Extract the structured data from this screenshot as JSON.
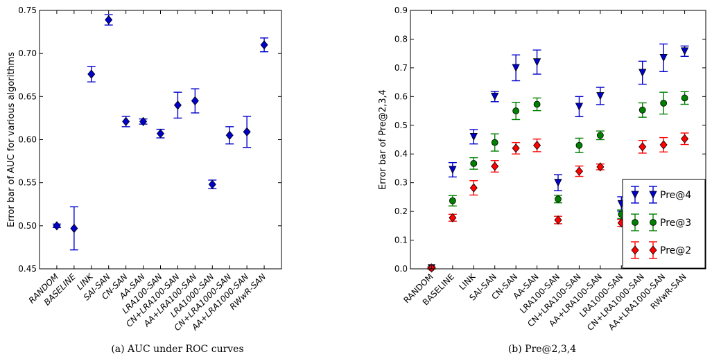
{
  "chart_data": [
    {
      "type": "scatter",
      "error_bars": true,
      "caption": "(a) AUC under ROC curves",
      "ylabel": "Error bar of AUC for various algorithms",
      "xlabel": "",
      "ylim": [
        0.45,
        0.75
      ],
      "yticks": [
        "0.45",
        "0.50",
        "0.55",
        "0.60",
        "0.65",
        "0.70",
        "0.75"
      ],
      "categories": [
        "RANDOM",
        "BASELINE",
        "LINK",
        "SAI-SAN",
        "CN-SAN",
        "AA-SAN",
        "LRA100-SAN",
        "CN+LRA100-SAN",
        "AA+LRA100-SAN",
        "LRA1000-SAN",
        "CN+LRA1000-SAN",
        "AA+LRA1000-SAN",
        "RWwR-SAN"
      ],
      "category_style": "italic",
      "series": [
        {
          "marker": "diamond",
          "color": "#0000cc",
          "values": [
            0.5,
            0.497,
            0.676,
            0.739,
            0.621,
            0.621,
            0.607,
            0.64,
            0.645,
            0.548,
            0.605,
            0.609,
            0.71
          ],
          "errors": [
            0.002,
            0.025,
            0.009,
            0.006,
            0.006,
            0.003,
            0.005,
            0.015,
            0.014,
            0.005,
            0.01,
            0.018,
            0.008
          ]
        }
      ],
      "grid": false
    },
    {
      "type": "scatter",
      "error_bars": true,
      "caption": "(b) Pre@2,3,4",
      "ylabel": "Error bar of Pre@2,3,4",
      "xlabel": "",
      "ylim": [
        0.0,
        0.9
      ],
      "yticks": [
        "0.0",
        "0.1",
        "0.2",
        "0.3",
        "0.4",
        "0.5",
        "0.6",
        "0.7",
        "0.8",
        "0.9"
      ],
      "categories": [
        "RANDOM",
        "BASELINE",
        "LINK",
        "SAI-SAN",
        "CN-SAN",
        "AA-SAN",
        "LRA100-SAN",
        "CN+LRA100-SAN",
        "AA+LRA100-SAN",
        "LRA1000-SAN",
        "CN+LRA1000-SAN",
        "AA+LRA1000-SAN",
        "RWwR-SAN"
      ],
      "category_style": "normal",
      "legend_position": "lower-right",
      "series": [
        {
          "name": "Pre@4",
          "marker": "triangle-down",
          "color": "#0000cc",
          "values": [
            0.003,
            0.345,
            0.46,
            0.6,
            0.7,
            0.72,
            0.3,
            0.565,
            0.602,
            0.226,
            0.683,
            0.735,
            0.758
          ],
          "errors": [
            0.003,
            0.025,
            0.025,
            0.018,
            0.045,
            0.042,
            0.028,
            0.035,
            0.03,
            0.025,
            0.04,
            0.048,
            0.018
          ]
        },
        {
          "name": "Pre@3",
          "marker": "circle",
          "color": "#007f00",
          "values": [
            0.003,
            0.237,
            0.367,
            0.44,
            0.55,
            0.573,
            0.243,
            0.43,
            0.465,
            0.19,
            0.553,
            0.577,
            0.595
          ],
          "errors": [
            0.003,
            0.018,
            0.02,
            0.03,
            0.03,
            0.022,
            0.013,
            0.025,
            0.015,
            0.015,
            0.025,
            0.038,
            0.022
          ]
        },
        {
          "name": "Pre@2",
          "marker": "diamond",
          "color": "#ff0000",
          "values": [
            0.003,
            0.178,
            0.282,
            0.357,
            0.42,
            0.43,
            0.17,
            0.34,
            0.355,
            0.16,
            0.425,
            0.432,
            0.453
          ],
          "errors": [
            0.003,
            0.012,
            0.025,
            0.02,
            0.02,
            0.022,
            0.013,
            0.018,
            0.01,
            0.012,
            0.022,
            0.025,
            0.02
          ]
        }
      ],
      "grid": false
    }
  ]
}
